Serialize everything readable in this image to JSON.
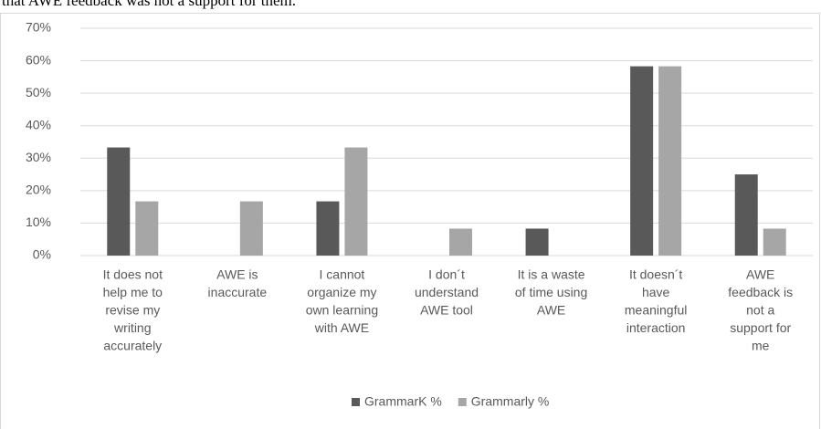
{
  "caption": "that AWE feedback was not a support for them.",
  "chart_data": {
    "type": "bar",
    "categories": [
      [
        "It does not",
        "help me to",
        "revise my",
        "writing",
        "accurately"
      ],
      [
        "AWE is",
        "inaccurate"
      ],
      [
        "I cannot",
        "organize my",
        "own learning",
        "with AWE"
      ],
      [
        "I don´t",
        "understand",
        "AWE tool"
      ],
      [
        "It is a waste",
        "of time using",
        "AWE"
      ],
      [
        "It doesn´t",
        "have",
        "meaningful",
        "interaction"
      ],
      [
        "AWE",
        "feedback is",
        "not a",
        "support for",
        "me"
      ]
    ],
    "series": [
      {
        "name": "GrammarK %",
        "color": "#595959",
        "values": [
          33.3,
          0,
          16.7,
          0,
          8.3,
          58.3,
          25
        ]
      },
      {
        "name": "Grammarly %",
        "color": "#a6a6a6",
        "values": [
          16.7,
          16.7,
          33.3,
          8.3,
          0,
          58.3,
          8.3
        ]
      }
    ],
    "ylim": [
      0,
      70
    ],
    "yticks": [
      {
        "value": 0,
        "label": "0%"
      },
      {
        "value": 10,
        "label": "10%"
      },
      {
        "value": 20,
        "label": "20%"
      },
      {
        "value": 30,
        "label": "30%"
      },
      {
        "value": 40,
        "label": "40%"
      },
      {
        "value": 50,
        "label": "50%"
      },
      {
        "value": 60,
        "label": "60%"
      },
      {
        "value": 70,
        "label": "70%"
      }
    ],
    "grid": true,
    "legend": "bottom"
  }
}
